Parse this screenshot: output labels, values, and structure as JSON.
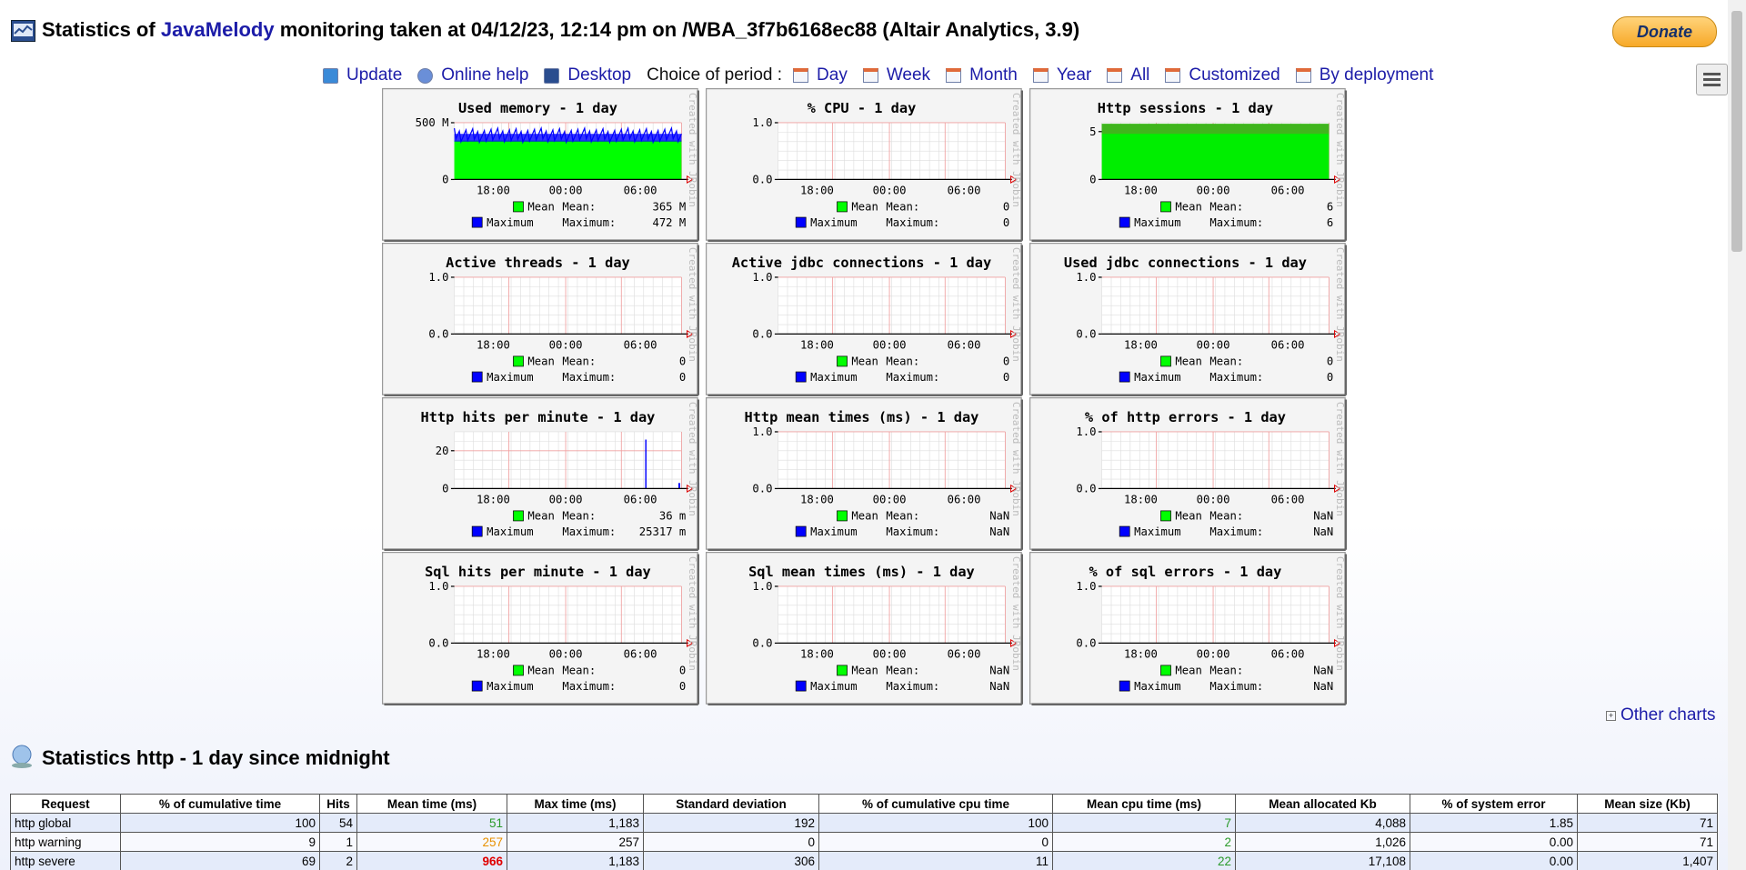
{
  "header": {
    "title_prefix": "Statistics of",
    "brand": "JavaMelody",
    "title_suffix": "monitoring taken at 04/12/23, 12:14 pm on /WBA_3f7b6168ec88 (Altair Analytics, 3.9)",
    "donate": "Donate"
  },
  "nav": {
    "links": [
      "Update",
      "Online help",
      "Desktop"
    ],
    "period_label": "Choice of period :",
    "periods": [
      "Day",
      "Week",
      "Month",
      "Year",
      "All",
      "Customized",
      "By deployment"
    ]
  },
  "charts": {
    "xticks": [
      "18:00",
      "00:00",
      "06:00"
    ],
    "watermark": "Created with JRobin",
    "legend_names": [
      "Mean",
      "Maximum"
    ],
    "legend_labels": [
      "Mean:",
      "Maximum:"
    ],
    "panels": [
      {
        "title": "Used memory - 1 day",
        "yticks": [
          "500 M",
          "0"
        ],
        "values": [
          "365 M",
          "472 M"
        ]
      },
      {
        "title": "% CPU - 1 day",
        "yticks": [
          "1.0",
          "0.0"
        ],
        "values": [
          "0",
          "0"
        ]
      },
      {
        "title": "Http sessions - 1 day",
        "yticks": [
          "5",
          "0"
        ],
        "values": [
          "6",
          "6"
        ]
      },
      {
        "title": "Active threads - 1 day",
        "yticks": [
          "1.0",
          "0.0"
        ],
        "values": [
          "0",
          "0"
        ]
      },
      {
        "title": "Active jdbc connections - 1 day",
        "yticks": [
          "1.0",
          "0.0"
        ],
        "values": [
          "0",
          "0"
        ]
      },
      {
        "title": "Used jdbc connections - 1 day",
        "yticks": [
          "1.0",
          "0.0"
        ],
        "values": [
          "0",
          "0"
        ]
      },
      {
        "title": "Http hits per minute - 1 day",
        "yticks": [
          "20",
          "0"
        ],
        "values": [
          "36 m",
          "25317 m"
        ]
      },
      {
        "title": "Http mean times (ms) - 1 day",
        "yticks": [
          "1.0",
          "0.0"
        ],
        "values": [
          "NaN",
          "NaN"
        ]
      },
      {
        "title": "% of http errors - 1 day",
        "yticks": [
          "1.0",
          "0.0"
        ],
        "values": [
          "NaN",
          "NaN"
        ]
      },
      {
        "title": "Sql hits per minute - 1 day",
        "yticks": [
          "1.0",
          "0.0"
        ],
        "values": [
          "0",
          "0"
        ]
      },
      {
        "title": "Sql mean times (ms) - 1 day",
        "yticks": [
          "1.0",
          "0.0"
        ],
        "values": [
          "NaN",
          "NaN"
        ]
      },
      {
        "title": "% of sql errors - 1 day",
        "yticks": [
          "1.0",
          "0.0"
        ],
        "values": [
          "NaN",
          "NaN"
        ]
      }
    ],
    "other": "Other charts"
  },
  "section": {
    "title": "Statistics http - 1 day since midnight"
  },
  "table": {
    "headers": [
      "Request",
      "% of cumulative time",
      "Hits",
      "Mean time (ms)",
      "Max time (ms)",
      "Standard deviation",
      "% of cumulative cpu time",
      "Mean cpu time (ms)",
      "Mean allocated Kb",
      "% of system error",
      "Mean size (Kb)"
    ],
    "rows": [
      [
        "http global",
        "100",
        "54",
        "51",
        "1,183",
        "192",
        "100",
        "7",
        "4,088",
        "1.85",
        "71"
      ],
      [
        "http warning",
        "9",
        "1",
        "257",
        "257",
        "0",
        "0",
        "2",
        "1,026",
        "0.00",
        "71"
      ],
      [
        "http severe",
        "69",
        "2",
        "966",
        "1,183",
        "306",
        "11",
        "22",
        "17,108",
        "0.00",
        "1,407"
      ]
    ]
  }
}
